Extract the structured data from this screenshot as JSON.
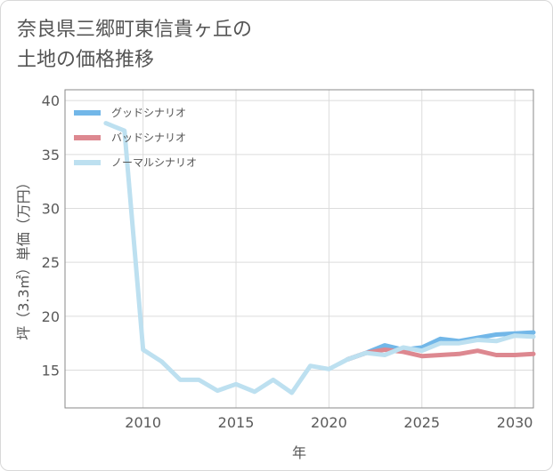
{
  "title_line1": "奈良県三郷町東信貴ヶ丘の",
  "title_line2": "土地の価格推移",
  "chart_data": {
    "type": "line",
    "xlabel": "年",
    "ylabel": "坪（3.3㎡）単価（万円）",
    "xlim": [
      2005.8,
      2031
    ],
    "ylim": [
      11.5,
      41
    ],
    "xticks": [
      2010,
      2015,
      2020,
      2025,
      2030
    ],
    "yticks": [
      15,
      20,
      25,
      30,
      35,
      40
    ],
    "series": [
      {
        "name": "グッドシナリオ",
        "color": "#72b7e8",
        "x": [
          2021,
          2022,
          2023,
          2024,
          2025,
          2026,
          2027,
          2028,
          2029,
          2030,
          2031
        ],
        "y": [
          16.0,
          16.6,
          17.3,
          16.9,
          17.1,
          17.9,
          17.7,
          18.0,
          18.3,
          18.4,
          18.5
        ]
      },
      {
        "name": "バッドシナリオ",
        "color": "#dd8890",
        "x": [
          2021,
          2022,
          2023,
          2024,
          2025,
          2026,
          2027,
          2028,
          2029,
          2030,
          2031
        ],
        "y": [
          16.0,
          16.6,
          16.9,
          16.7,
          16.3,
          16.4,
          16.5,
          16.8,
          16.4,
          16.4,
          16.5
        ]
      },
      {
        "name": "ノーマルシナリオ",
        "color": "#bde0f0",
        "x": [
          2008,
          2009,
          2010,
          2011,
          2012,
          2013,
          2014,
          2015,
          2016,
          2017,
          2018,
          2019,
          2020,
          2021,
          2022,
          2023,
          2024,
          2025,
          2026,
          2027,
          2028,
          2029,
          2030,
          2031
        ],
        "y": [
          37.9,
          37.2,
          16.9,
          15.8,
          14.1,
          14.1,
          13.1,
          13.7,
          13.0,
          14.1,
          12.9,
          15.4,
          15.1,
          16.0,
          16.6,
          16.4,
          17.1,
          16.8,
          17.5,
          17.5,
          17.8,
          17.7,
          18.2,
          18.1
        ]
      }
    ]
  }
}
